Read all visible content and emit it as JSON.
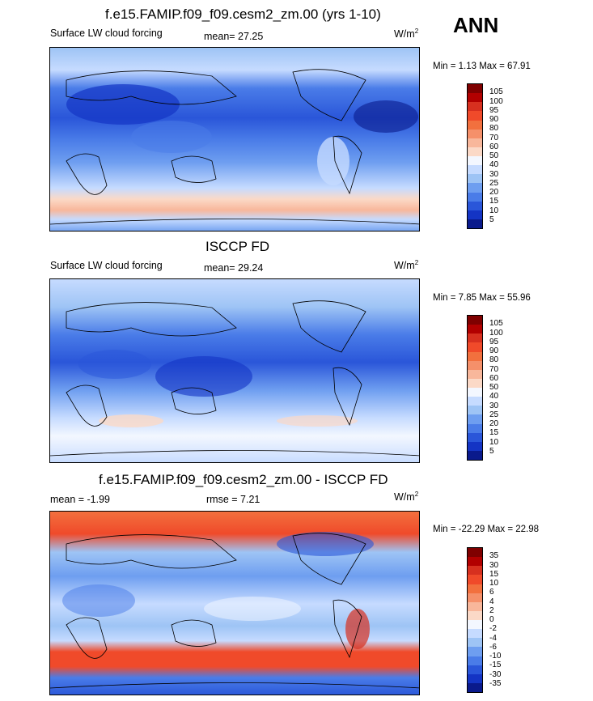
{
  "panel_top": {
    "title": "f.e15.FAMIP.f09_f09.cesm2_zm.00 (yrs 1-10)",
    "variable": "Surface LW cloud forcing",
    "mean_text": "mean=  27.25",
    "units_base": "W/m",
    "units_sup": "2",
    "minmax": "Min =   1.13 Max =  67.91"
  },
  "season": "ANN",
  "panel_mid": {
    "title": "ISCCP FD",
    "variable": "Surface LW cloud forcing",
    "mean_text": "mean=  29.24",
    "units_base": "W/m",
    "units_sup": "2",
    "minmax": "Min =   7.85 Max =  55.96"
  },
  "panel_diff": {
    "title": "f.e15.FAMIP.f09_f09.cesm2_zm.00 - ISCCP FD",
    "mean_text": "mean =  -1.99",
    "rmse_text": "rmse =    7.21",
    "units_base": "W/m",
    "units_sup": "2",
    "minmax": "Min = -22.29 Max =  22.98"
  },
  "colorbar_abs": {
    "levels": [
      "105",
      "100",
      "95",
      "90",
      "80",
      "70",
      "60",
      "50",
      "40",
      "30",
      "25",
      "20",
      "15",
      "10",
      "5"
    ],
    "colors": [
      "#7f0000",
      "#b20000",
      "#d7301f",
      "#f04a2a",
      "#f2703e",
      "#f5906a",
      "#f8b79b",
      "#fbd9c7",
      "#f3f7ff",
      "#c6dbff",
      "#9ec4f5",
      "#6e9ef0",
      "#4a7ce8",
      "#2a56d9",
      "#1434c4",
      "#0a1a8c"
    ]
  },
  "colorbar_diff": {
    "levels": [
      "35",
      "30",
      "15",
      "10",
      "6",
      "4",
      "2",
      "0",
      "-2",
      "-4",
      "-6",
      "-10",
      "-15",
      "-30",
      "-35"
    ],
    "colors": [
      "#7f0000",
      "#b20000",
      "#d7301f",
      "#f04a2a",
      "#f2703e",
      "#f5906a",
      "#f8b79b",
      "#fbd9c7",
      "#f3f7ff",
      "#c6dbff",
      "#9ec4f5",
      "#6e9ef0",
      "#4a7ce8",
      "#2a56d9",
      "#1434c4",
      "#0a1a8c"
    ]
  },
  "chart_data": [
    {
      "type": "heatmap",
      "title": "f.e15.FAMIP.f09_f09.cesm2_zm.00 (yrs 1-10)",
      "subtitle": "Surface LW cloud forcing",
      "season": "ANN",
      "mean": 27.25,
      "min": 1.13,
      "max": 67.91,
      "units": "W/m2",
      "contour_levels": [
        5,
        10,
        15,
        20,
        25,
        30,
        40,
        50,
        60,
        70,
        80,
        90,
        95,
        100,
        105
      ]
    },
    {
      "type": "heatmap",
      "title": "ISCCP FD",
      "subtitle": "Surface LW cloud forcing",
      "mean": 29.24,
      "min": 7.85,
      "max": 55.96,
      "units": "W/m2",
      "contour_levels": [
        5,
        10,
        15,
        20,
        25,
        30,
        40,
        50,
        60,
        70,
        80,
        90,
        95,
        100,
        105
      ]
    },
    {
      "type": "heatmap",
      "title": "f.e15.FAMIP.f09_f09.cesm2_zm.00 - ISCCP FD",
      "mean": -1.99,
      "rmse": 7.21,
      "min": -22.29,
      "max": 22.98,
      "units": "W/m2",
      "contour_levels": [
        -35,
        -30,
        -15,
        -10,
        -6,
        -4,
        -2,
        0,
        2,
        4,
        6,
        10,
        15,
        30,
        35
      ]
    }
  ]
}
